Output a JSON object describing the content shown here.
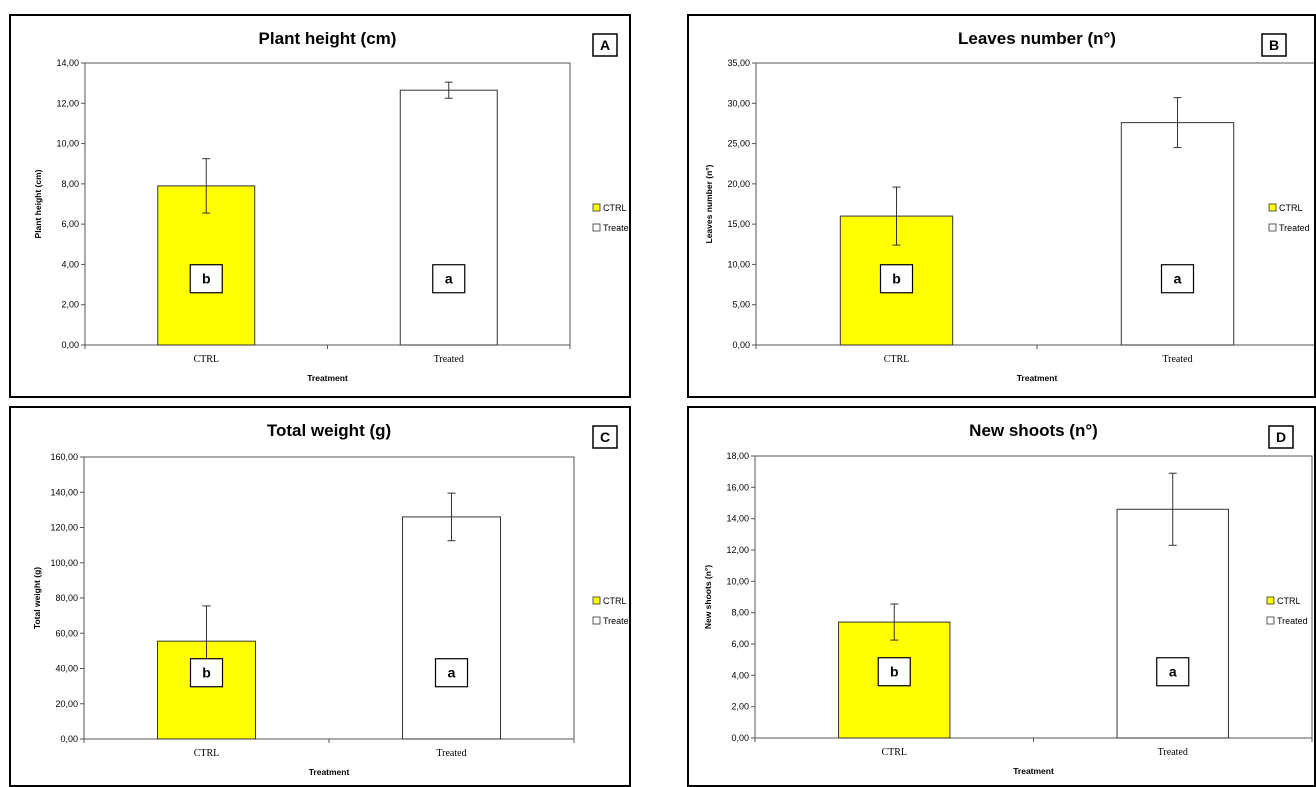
{
  "chart_data": [
    {
      "panel_label": "A",
      "type": "bar",
      "title": "Plant height (cm)",
      "xlabel": "Treatment",
      "ylabel": "Plant height (cm)",
      "ylim": [
        0,
        14
      ],
      "yticks": [
        "0,00",
        "2,00",
        "4,00",
        "6,00",
        "8,00",
        "10,00",
        "12,00",
        "14,00"
      ],
      "categories": [
        "CTRL",
        "Treated"
      ],
      "values": [
        7.9,
        12.65
      ],
      "errors": [
        1.35,
        0.4
      ],
      "significance": [
        "b",
        "a"
      ],
      "colors": [
        "#ffff00",
        "#ffffff"
      ],
      "legend": [
        "CTRL",
        "Treated"
      ],
      "legend_position": "right"
    },
    {
      "panel_label": "B",
      "type": "bar",
      "title": "Leaves number (n°)",
      "xlabel": "Treatment",
      "ylabel": "Leaves number (n°)",
      "ylim": [
        0,
        35
      ],
      "yticks": [
        "0,00",
        "5,00",
        "10,00",
        "15,00",
        "20,00",
        "25,00",
        "30,00",
        "35,00"
      ],
      "categories": [
        "CTRL",
        "Treated"
      ],
      "values": [
        16.0,
        27.6
      ],
      "errors": [
        3.6,
        3.1
      ],
      "significance": [
        "b",
        "a"
      ],
      "colors": [
        "#ffff00",
        "#ffffff"
      ],
      "legend": [
        "CTRL",
        "Treated"
      ],
      "legend_position": "right"
    },
    {
      "panel_label": "C",
      "type": "bar",
      "title": "Total weight (g)",
      "xlabel": "Treatment",
      "ylabel": "Total weight (g)",
      "ylim": [
        0,
        160
      ],
      "yticks": [
        "0,00",
        "20,00",
        "40,00",
        "60,00",
        "80,00",
        "100,00",
        "120,00",
        "140,00",
        "160,00"
      ],
      "categories": [
        "CTRL",
        "Treated"
      ],
      "values": [
        55.5,
        126.0
      ],
      "errors": [
        20.0,
        13.5
      ],
      "significance": [
        "b",
        "a"
      ],
      "colors": [
        "#ffff00",
        "#ffffff"
      ],
      "legend": [
        "CTRL",
        "Treated"
      ],
      "legend_position": "right"
    },
    {
      "panel_label": "D",
      "type": "bar",
      "title": "New shoots (n°)",
      "xlabel": "Treatment",
      "ylabel": "New shoots (n°)",
      "ylim": [
        0,
        18
      ],
      "yticks": [
        "0,00",
        "2,00",
        "4,00",
        "6,00",
        "8,00",
        "10,00",
        "12,00",
        "14,00",
        "16,00",
        "18,00"
      ],
      "categories": [
        "CTRL",
        "Treated"
      ],
      "values": [
        7.4,
        14.6
      ],
      "errors": [
        1.15,
        2.3
      ],
      "significance": [
        "b",
        "a"
      ],
      "colors": [
        "#ffff00",
        "#ffffff"
      ],
      "legend": [
        "CTRL",
        "Treated"
      ],
      "legend_position": "right"
    }
  ]
}
